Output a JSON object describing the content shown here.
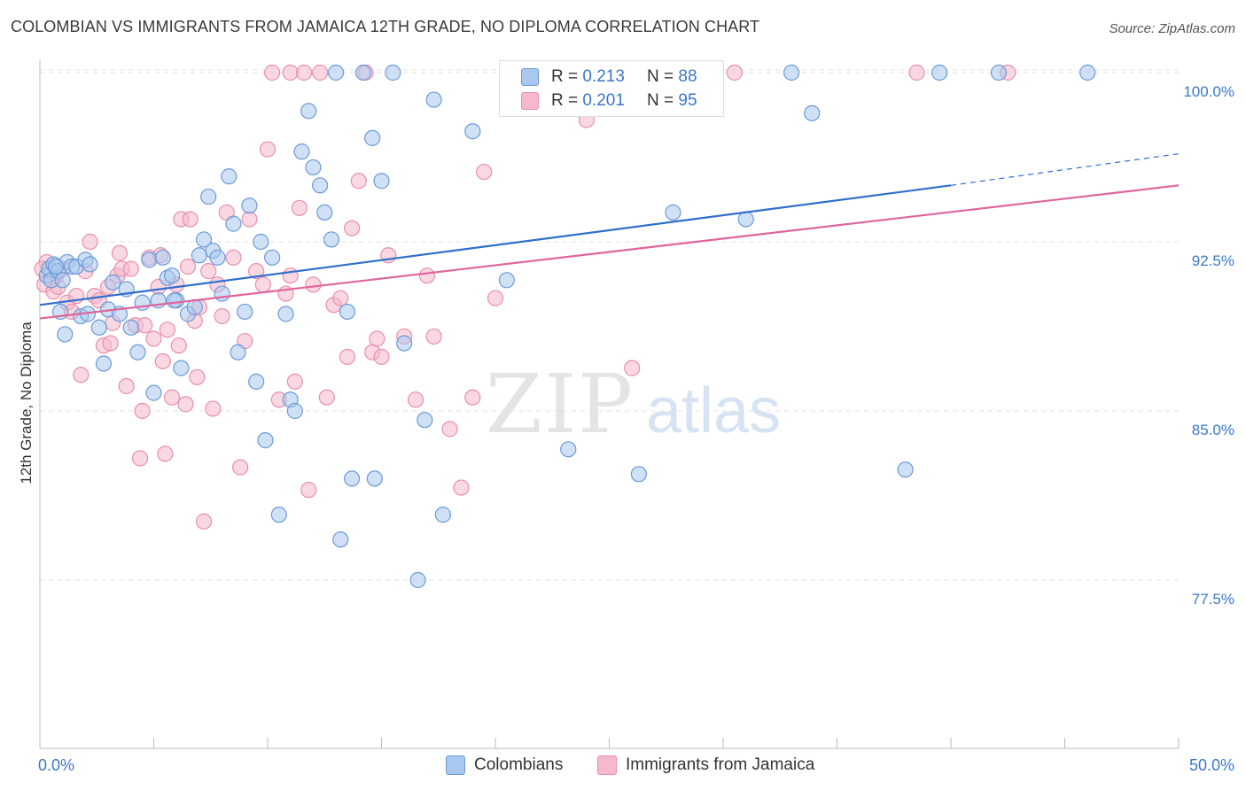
{
  "title": "COLOMBIAN VS IMMIGRANTS FROM JAMAICA 12TH GRADE, NO DIPLOMA CORRELATION CHART",
  "source": "Source: ZipAtlas.com",
  "watermark": {
    "zip": "ZIP",
    "atlas": "atlas"
  },
  "stats": {
    "colombians": {
      "r_label": "R =",
      "r": "0.213",
      "n_label": "N =",
      "n": "88"
    },
    "jamaica": {
      "r_label": "R =",
      "r": "0.201",
      "n_label": "N =",
      "n": "95"
    }
  },
  "legend": {
    "colombians": "Colombians",
    "jamaica": "Immigrants from Jamaica"
  },
  "colors": {
    "blue_fill": "#a9c8ef",
    "blue_stroke": "#6b9ad8",
    "blue_line": "#2f6fcc",
    "pink_fill": "#f6b8cb",
    "pink_stroke": "#e88fab",
    "pink_line": "#e0659a",
    "tick_label": "#3a78c9",
    "grid": "#e2e2e2"
  },
  "chart_data": {
    "type": "scatter",
    "title": "COLOMBIAN VS IMMIGRANTS FROM JAMAICA 12TH GRADE, NO DIPLOMA CORRELATION CHART",
    "xlabel": "",
    "ylabel": "12th Grade, No Diploma",
    "xlim": [
      0,
      50
    ],
    "ylim": [
      71,
      101.5
    ],
    "x_tick_labels": [
      "0.0%",
      "50.0%"
    ],
    "y_ticks": [
      77.5,
      85.0,
      92.5,
      100.0
    ],
    "y_tick_labels": [
      "77.5%",
      "85.0%",
      "92.5%",
      "100.0%"
    ],
    "grid": true,
    "legend_position": "bottom-center",
    "series": [
      {
        "name": "Colombians",
        "trend": {
          "x0": 0,
          "y0": 89.7,
          "x1": 40,
          "y1": 95.0,
          "dashed_to_x": 50,
          "dashed_to_y": 96.4
        },
        "points": [
          [
            0.3,
            91.0
          ],
          [
            0.4,
            91.3
          ],
          [
            0.5,
            90.8
          ],
          [
            0.6,
            91.5
          ],
          [
            0.8,
            91.2
          ],
          [
            0.9,
            89.4
          ],
          [
            1.0,
            90.8
          ],
          [
            1.1,
            88.4
          ],
          [
            1.2,
            91.6
          ],
          [
            1.4,
            91.4
          ],
          [
            1.6,
            91.4
          ],
          [
            1.8,
            89.2
          ],
          [
            2.0,
            91.7
          ],
          [
            2.1,
            89.3
          ],
          [
            2.2,
            91.5
          ],
          [
            2.6,
            88.7
          ],
          [
            2.8,
            87.1
          ],
          [
            3.0,
            89.5
          ],
          [
            3.2,
            90.7
          ],
          [
            3.5,
            89.3
          ],
          [
            3.8,
            90.4
          ],
          [
            4.0,
            88.7
          ],
          [
            4.3,
            87.6
          ],
          [
            4.5,
            89.8
          ],
          [
            4.8,
            91.7
          ],
          [
            5.0,
            85.8
          ],
          [
            5.2,
            89.9
          ],
          [
            5.4,
            91.8
          ],
          [
            5.6,
            90.9
          ],
          [
            5.8,
            91.0
          ],
          [
            6.0,
            89.9
          ],
          [
            6.2,
            86.9
          ],
          [
            6.5,
            89.3
          ],
          [
            6.8,
            89.6
          ],
          [
            7.0,
            91.9
          ],
          [
            7.2,
            92.6
          ],
          [
            7.4,
            94.5
          ],
          [
            7.6,
            92.1
          ],
          [
            7.8,
            91.8
          ],
          [
            8.0,
            90.2
          ],
          [
            8.3,
            95.4
          ],
          [
            8.5,
            93.3
          ],
          [
            8.7,
            87.6
          ],
          [
            9.0,
            89.4
          ],
          [
            9.2,
            94.1
          ],
          [
            9.5,
            86.3
          ],
          [
            9.7,
            92.5
          ],
          [
            9.9,
            83.7
          ],
          [
            10.2,
            91.8
          ],
          [
            10.5,
            80.4
          ],
          [
            10.8,
            89.3
          ],
          [
            11.0,
            85.5
          ],
          [
            11.2,
            85.0
          ],
          [
            11.5,
            96.5
          ],
          [
            11.8,
            98.3
          ],
          [
            12.0,
            95.8
          ],
          [
            12.3,
            95.0
          ],
          [
            12.5,
            93.8
          ],
          [
            12.8,
            92.6
          ],
          [
            13.0,
            100.0
          ],
          [
            13.2,
            79.3
          ],
          [
            13.5,
            89.4
          ],
          [
            13.7,
            82.0
          ],
          [
            14.2,
            100.0
          ],
          [
            14.6,
            97.1
          ],
          [
            14.7,
            82.0
          ],
          [
            15.0,
            95.2
          ],
          [
            15.5,
            100.0
          ],
          [
            16.0,
            88.0
          ],
          [
            16.6,
            77.5
          ],
          [
            16.9,
            84.6
          ],
          [
            17.3,
            98.8
          ],
          [
            17.7,
            80.4
          ],
          [
            19.0,
            97.4
          ],
          [
            20.5,
            90.8
          ],
          [
            22.5,
            100.0
          ],
          [
            23.2,
            83.3
          ],
          [
            26.3,
            82.2
          ],
          [
            27.8,
            93.8
          ],
          [
            31.0,
            93.5
          ],
          [
            33.0,
            100.0
          ],
          [
            33.9,
            98.2
          ],
          [
            38.0,
            82.4
          ],
          [
            39.5,
            100.0
          ],
          [
            46.0,
            100.0
          ],
          [
            42.1,
            100.0
          ],
          [
            0.7,
            91.4
          ],
          [
            5.9,
            89.9
          ]
        ]
      },
      {
        "name": "Immigrants from Jamaica",
        "trend": {
          "x0": 0,
          "y0": 89.1,
          "x1": 50,
          "y1": 95.0
        },
        "points": [
          [
            0.2,
            90.6
          ],
          [
            0.3,
            91.6
          ],
          [
            0.5,
            91.2
          ],
          [
            0.6,
            90.3
          ],
          [
            0.7,
            91.0
          ],
          [
            0.8,
            90.5
          ],
          [
            1.0,
            91.3
          ],
          [
            1.2,
            89.8
          ],
          [
            1.4,
            89.4
          ],
          [
            1.6,
            90.1
          ],
          [
            1.8,
            86.6
          ],
          [
            2.0,
            91.2
          ],
          [
            2.2,
            92.5
          ],
          [
            2.4,
            90.1
          ],
          [
            2.6,
            89.9
          ],
          [
            2.8,
            87.9
          ],
          [
            3.0,
            90.5
          ],
          [
            3.2,
            88.9
          ],
          [
            3.4,
            91.0
          ],
          [
            3.5,
            92.0
          ],
          [
            3.6,
            91.3
          ],
          [
            3.8,
            86.1
          ],
          [
            4.0,
            91.3
          ],
          [
            4.2,
            88.8
          ],
          [
            4.4,
            82.9
          ],
          [
            4.5,
            85.0
          ],
          [
            4.6,
            88.8
          ],
          [
            4.8,
            91.8
          ],
          [
            5.0,
            88.2
          ],
          [
            5.2,
            90.5
          ],
          [
            5.4,
            87.2
          ],
          [
            5.5,
            83.1
          ],
          [
            5.6,
            88.6
          ],
          [
            5.8,
            85.6
          ],
          [
            6.0,
            90.6
          ],
          [
            6.1,
            87.9
          ],
          [
            6.2,
            93.5
          ],
          [
            6.4,
            85.3
          ],
          [
            6.5,
            91.4
          ],
          [
            6.6,
            93.5
          ],
          [
            6.8,
            89.0
          ],
          [
            6.9,
            86.5
          ],
          [
            7.0,
            89.6
          ],
          [
            7.2,
            80.1
          ],
          [
            7.4,
            91.2
          ],
          [
            7.6,
            85.1
          ],
          [
            7.8,
            90.6
          ],
          [
            8.0,
            89.2
          ],
          [
            8.2,
            93.8
          ],
          [
            8.5,
            91.8
          ],
          [
            8.8,
            82.5
          ],
          [
            9.0,
            88.1
          ],
          [
            9.2,
            93.5
          ],
          [
            9.5,
            91.2
          ],
          [
            9.8,
            90.6
          ],
          [
            10.0,
            96.6
          ],
          [
            10.2,
            100.0
          ],
          [
            10.5,
            85.5
          ],
          [
            10.8,
            90.2
          ],
          [
            11.0,
            100.0
          ],
          [
            11.2,
            86.3
          ],
          [
            11.4,
            94.0
          ],
          [
            11.6,
            100.0
          ],
          [
            11.8,
            81.5
          ],
          [
            12.0,
            90.6
          ],
          [
            12.3,
            100.0
          ],
          [
            12.6,
            85.6
          ],
          [
            12.9,
            89.7
          ],
          [
            13.2,
            90.0
          ],
          [
            13.5,
            87.4
          ],
          [
            13.7,
            93.1
          ],
          [
            14.0,
            95.2
          ],
          [
            14.3,
            100.0
          ],
          [
            14.6,
            87.6
          ],
          [
            14.8,
            88.2
          ],
          [
            15.0,
            87.4
          ],
          [
            15.3,
            91.9
          ],
          [
            16.0,
            88.3
          ],
          [
            16.5,
            85.5
          ],
          [
            17.0,
            91.0
          ],
          [
            17.3,
            88.3
          ],
          [
            18.0,
            84.2
          ],
          [
            18.5,
            81.6
          ],
          [
            19.0,
            85.6
          ],
          [
            19.5,
            95.6
          ],
          [
            20.0,
            90.0
          ],
          [
            24.0,
            97.9
          ],
          [
            26.0,
            86.9
          ],
          [
            30.5,
            100.0
          ],
          [
            38.5,
            100.0
          ],
          [
            42.5,
            100.0
          ],
          [
            11.0,
            91.0
          ],
          [
            5.3,
            91.9
          ],
          [
            3.1,
            88.0
          ],
          [
            0.1,
            91.3
          ]
        ]
      }
    ]
  }
}
